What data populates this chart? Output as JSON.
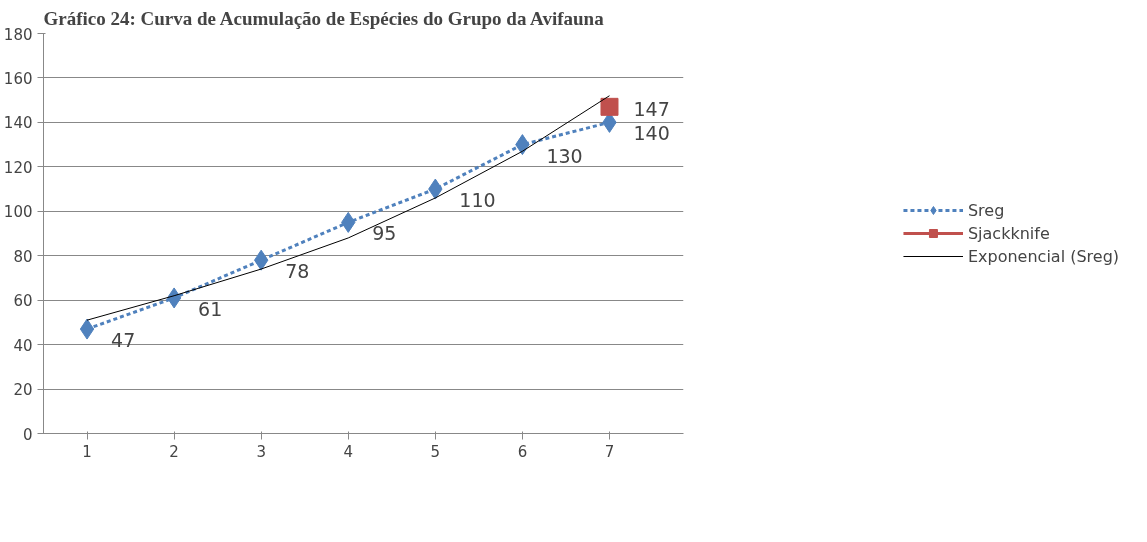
{
  "chart_data": {
    "type": "line",
    "title": "Gráfico 24: Curva de Acumulação de Espécies do Grupo da Avifauna",
    "categories": [
      "1",
      "2",
      "3",
      "4",
      "5",
      "6",
      "7"
    ],
    "series": [
      {
        "name": "Sreg",
        "color": "#4f81bd",
        "marker": "diamond",
        "line_style": "dashed",
        "data_labels": true,
        "values": [
          47,
          61,
          78,
          95,
          110,
          130,
          140
        ]
      },
      {
        "name": "Sjackknife",
        "color": "#c0504d",
        "marker": "square",
        "line_style": "solid",
        "data_labels": true,
        "values": [
          null,
          null,
          null,
          null,
          null,
          null,
          147
        ]
      },
      {
        "name": "Exponencial (Sreg)",
        "color": "#000000",
        "type": "line",
        "marker": "none",
        "line_style": "solid",
        "values": [
          51,
          62,
          74,
          88,
          106,
          127,
          152
        ]
      }
    ],
    "ylim": [
      0,
      180
    ],
    "yticks": [
      0,
      20,
      40,
      60,
      80,
      100,
      120,
      140,
      160,
      180
    ],
    "grid": "y",
    "legend": "right"
  }
}
